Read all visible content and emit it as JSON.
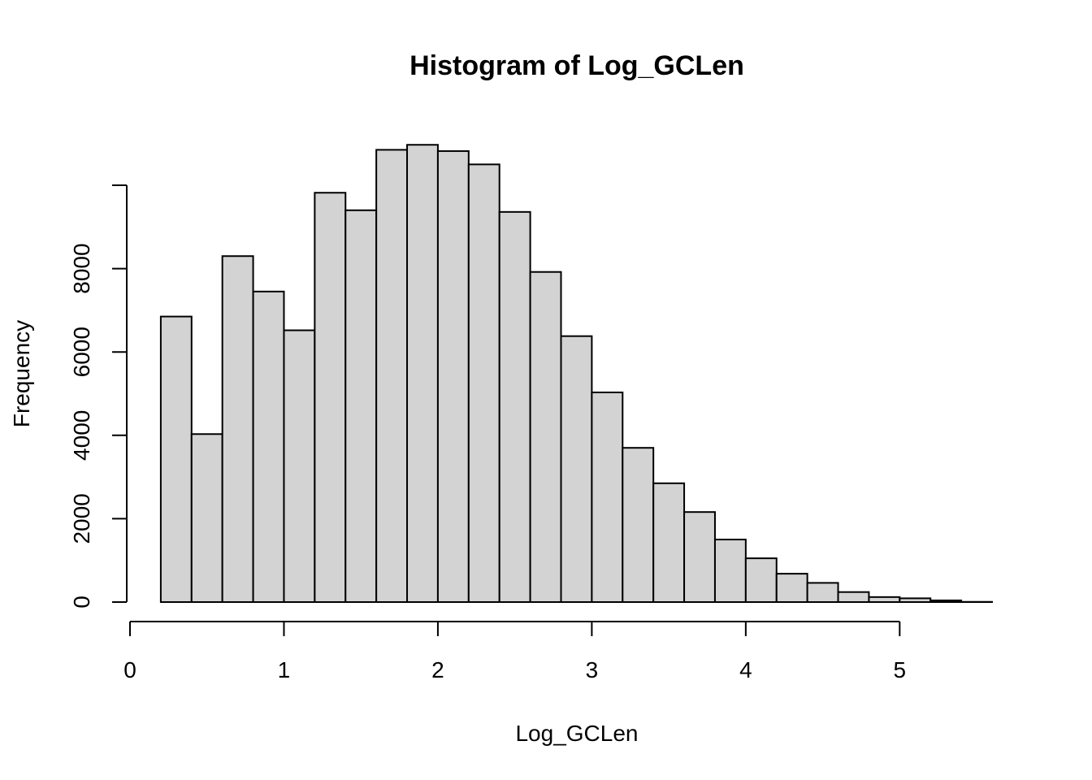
{
  "chart_data": {
    "type": "histogram",
    "title": "Histogram of Log_GCLen",
    "xlabel": "Log_GCLen",
    "ylabel": "Frequency",
    "xlim": [
      0,
      5.6
    ],
    "ylim": [
      0,
      11000
    ],
    "x_ticks": [
      0,
      1,
      2,
      3,
      4,
      5
    ],
    "x_tick_labels": [
      "0",
      "1",
      "2",
      "3",
      "4",
      "5"
    ],
    "y_ticks": [
      0,
      2000,
      4000,
      6000,
      8000,
      10000
    ],
    "y_tick_labels": [
      "0",
      "2000",
      "4000",
      "6000",
      "8000",
      ""
    ],
    "bins": [
      {
        "x0": 0.2,
        "x1": 0.4,
        "count": 6850
      },
      {
        "x0": 0.4,
        "x1": 0.6,
        "count": 4030
      },
      {
        "x0": 0.6,
        "x1": 0.8,
        "count": 8300
      },
      {
        "x0": 0.8,
        "x1": 1.0,
        "count": 7450
      },
      {
        "x0": 1.0,
        "x1": 1.2,
        "count": 6520
      },
      {
        "x0": 1.2,
        "x1": 1.4,
        "count": 9820
      },
      {
        "x0": 1.4,
        "x1": 1.6,
        "count": 9400
      },
      {
        "x0": 1.6,
        "x1": 1.8,
        "count": 10850
      },
      {
        "x0": 1.8,
        "x1": 2.0,
        "count": 10970
      },
      {
        "x0": 2.0,
        "x1": 2.2,
        "count": 10820
      },
      {
        "x0": 2.2,
        "x1": 2.4,
        "count": 10500
      },
      {
        "x0": 2.4,
        "x1": 2.6,
        "count": 9360
      },
      {
        "x0": 2.6,
        "x1": 2.8,
        "count": 7920
      },
      {
        "x0": 2.8,
        "x1": 3.0,
        "count": 6380
      },
      {
        "x0": 3.0,
        "x1": 3.2,
        "count": 5030
      },
      {
        "x0": 3.2,
        "x1": 3.4,
        "count": 3700
      },
      {
        "x0": 3.4,
        "x1": 3.6,
        "count": 2850
      },
      {
        "x0": 3.6,
        "x1": 3.8,
        "count": 2160
      },
      {
        "x0": 3.8,
        "x1": 4.0,
        "count": 1500
      },
      {
        "x0": 4.0,
        "x1": 4.2,
        "count": 1050
      },
      {
        "x0": 4.2,
        "x1": 4.4,
        "count": 680
      },
      {
        "x0": 4.4,
        "x1": 4.6,
        "count": 460
      },
      {
        "x0": 4.6,
        "x1": 4.8,
        "count": 240
      },
      {
        "x0": 4.8,
        "x1": 5.0,
        "count": 120
      },
      {
        "x0": 5.0,
        "x1": 5.2,
        "count": 90
      },
      {
        "x0": 5.2,
        "x1": 5.4,
        "count": 40
      },
      {
        "x0": 5.4,
        "x1": 5.6,
        "count": 5
      }
    ],
    "bar_fill": "#d3d3d3",
    "bar_stroke": "#000000",
    "grid": false,
    "legend": "none"
  }
}
